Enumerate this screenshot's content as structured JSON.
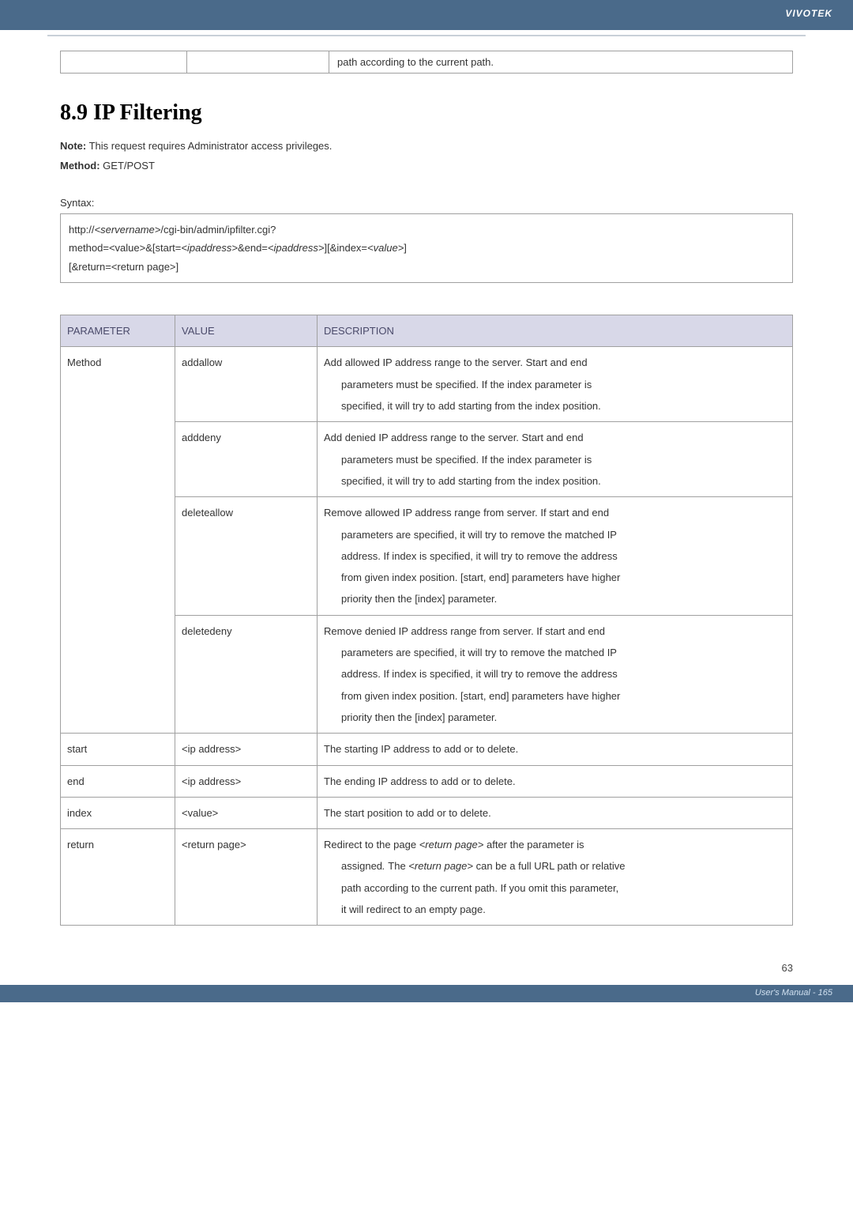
{
  "header": {
    "brand": "VIVOTEK"
  },
  "topTable": {
    "c3": "path according to the current path."
  },
  "section": {
    "title": "8.9 IP Filtering",
    "noteLabel": "Note:",
    "noteText": " This request requires Administrator access privileges.",
    "methodLabel": "Method:",
    "methodText": " GET/POST"
  },
  "syntax": {
    "label": "Syntax:",
    "l1a": "http://",
    "l1b": "<servername>",
    "l1c": "/cgi-bin/admin/ipfilter.cgi?",
    "l2a": "method=<value>&[start=",
    "l2b": "<ipaddress>",
    "l2c": "&end=",
    "l2d": "<ipaddress>",
    "l2e": "][&index=",
    "l2f": "<value>",
    "l2g": "]",
    "l3": "[&return=<return page>]"
  },
  "paramTable": {
    "headers": {
      "parameter": "PARAMETER",
      "value": "VALUE",
      "description": "DESCRIPTION"
    },
    "method": {
      "param": "Method",
      "addallow": {
        "value": "addallow",
        "d1": "Add allowed IP address range to the server. Start and end",
        "d2": "parameters must be specified. If the index parameter is",
        "d3": "specified, it will try to add starting from the index position."
      },
      "adddeny": {
        "value": "adddeny",
        "d1": "Add denied IP address range to the server. Start and end",
        "d2": "parameters must be specified. If the index parameter is",
        "d3": "specified, it will try to add starting from the index position."
      },
      "deleteallow": {
        "value": "deleteallow",
        "d1": "Remove allowed IP address range from server. If start and end",
        "d2": "parameters are specified, it will try to remove the matched IP",
        "d3": "address. If index is specified, it will try to remove the address",
        "d4": "from given index position. [start, end] parameters have higher",
        "d5": "priority then the [index] parameter."
      },
      "deletedeny": {
        "value": "deletedeny",
        "d1": "Remove denied IP address range from server. If start and end",
        "d2": "parameters are specified, it will try to remove the matched IP",
        "d3": "address. If index is specified, it will try to remove the address",
        "d4": "from given index position. [start, end] parameters have higher",
        "d5": "priority then the [index] parameter."
      }
    },
    "start": {
      "param": "start",
      "value": "<ip address>",
      "desc": "The starting IP address to add or to delete."
    },
    "end": {
      "param": "end",
      "value": "<ip address>",
      "desc": "The ending IP address to add or to delete."
    },
    "index": {
      "param": "index",
      "value": "<value>",
      "desc": "The start position to add or to delete."
    },
    "return": {
      "param": "return",
      "value": "<return page>",
      "d1a": "Redirect to the page ",
      "d1b": "<return page>",
      "d1c": " after the parameter is",
      "d2a": "assigned",
      "d2b": ". ",
      "d2c": "The ",
      "d2d": "<return page>",
      "d2e": " can be a full URL path or relative",
      "d3": "path according to the current path. If you omit this parameter,",
      "d4": "it will redirect to an empty page."
    }
  },
  "footer": {
    "pageNum": "63",
    "manual": "User's Manual - 165"
  }
}
